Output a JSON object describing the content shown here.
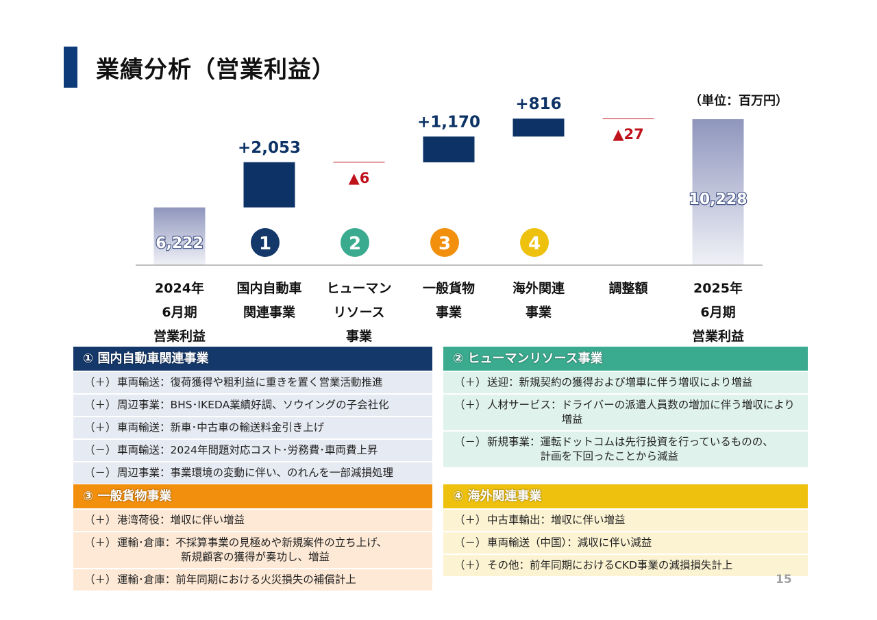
{
  "page": {
    "title": "業績分析（営業利益）",
    "unit": "（単位：百万円）",
    "page_number": "15"
  },
  "chart_data": {
    "type": "bar",
    "subtype": "waterfall",
    "categories": [
      [
        "2024年",
        "6月期",
        "営業利益"
      ],
      [
        "国内自動車",
        "関連事業"
      ],
      [
        "ヒューマン",
        "リソース",
        "事業"
      ],
      [
        "一般貨物",
        "事業"
      ],
      [
        "海外関連",
        "事業"
      ],
      [
        "調整額"
      ],
      [
        "2025年",
        "6月期",
        "営業利益"
      ]
    ],
    "values": [
      6222,
      2053,
      -6,
      1170,
      816,
      -27,
      10228
    ],
    "kinds": [
      "total",
      "delta",
      "delta",
      "delta",
      "delta",
      "delta",
      "total"
    ],
    "labels": [
      "6,222",
      "+2,053",
      "▲6",
      "+1,170",
      "+816",
      "▲27",
      "10,228"
    ],
    "badges": [
      "",
      "1",
      "2",
      "3",
      "4",
      "",
      ""
    ],
    "colors": {
      "total_top": "#8f96bd",
      "total_bottom": "#f0f1f7",
      "increase": "#0d3366",
      "decrease": "#c0121b",
      "badge_1": "#14386a",
      "badge_2": "#3aab8f",
      "badge_3": "#f28f0c",
      "badge_4": "#eec10f"
    }
  },
  "panels": [
    {
      "header": "①  国内自動車関連事業",
      "rows": [
        {
          "sign": "（＋）",
          "text": "車両輸送：復荷獲得や粗利益に重きを置く営業活動推進",
          "cont": ""
        },
        {
          "sign": "（＋）",
          "text": "周辺事業：BHS･IKEDA業績好調、ソウイングの子会社化",
          "cont": ""
        },
        {
          "sign": "（＋）",
          "text": "車両輸送：新車･中古車の輸送料金引き上げ",
          "cont": ""
        },
        {
          "sign": "（－）",
          "text": "車両輸送：2024年問題対応コスト･労務費･車両費上昇",
          "cont": ""
        },
        {
          "sign": "（－）",
          "text": "周辺事業：事業環境の変動に伴い、のれんを一部減損処理",
          "cont": ""
        }
      ]
    },
    {
      "header": "②  ヒューマンリソース事業",
      "rows": [
        {
          "sign": "（＋）",
          "text": "送迎：新規契約の獲得および増車に伴う増収により増益",
          "cont": ""
        },
        {
          "sign": "（＋）",
          "text": "人材サービス：ドライバーの派遣人員数の増加に伴う増収により",
          "cont": "増益"
        },
        {
          "sign": "（－）",
          "text": "新規事業：運転ドットコムは先行投資を行っているものの、",
          "cont": "計画を下回ったことから減益"
        }
      ]
    },
    {
      "header": "③  一般貨物事業",
      "rows": [
        {
          "sign": "（＋）",
          "text": "港湾荷役：増収に伴い増益",
          "cont": ""
        },
        {
          "sign": "（＋）",
          "text": "運輸･倉庫：不採算事業の見極めや新規案件の立ち上げ、",
          "cont": "新規顧客の獲得が奏功し、増益"
        },
        {
          "sign": "（＋）",
          "text": "運輸･倉庫：前年同期における火災損失の補償計上",
          "cont": ""
        }
      ]
    },
    {
      "header": "④  海外関連事業",
      "rows": [
        {
          "sign": "（＋）",
          "text": "中古車輸出：増収に伴い増益",
          "cont": ""
        },
        {
          "sign": "（－）",
          "text": "車両輸送（中国）：減収に伴い減益",
          "cont": ""
        },
        {
          "sign": "（＋）",
          "text": "その他：前年同期におけるCKD事業の減損損失計上",
          "cont": ""
        }
      ]
    }
  ]
}
